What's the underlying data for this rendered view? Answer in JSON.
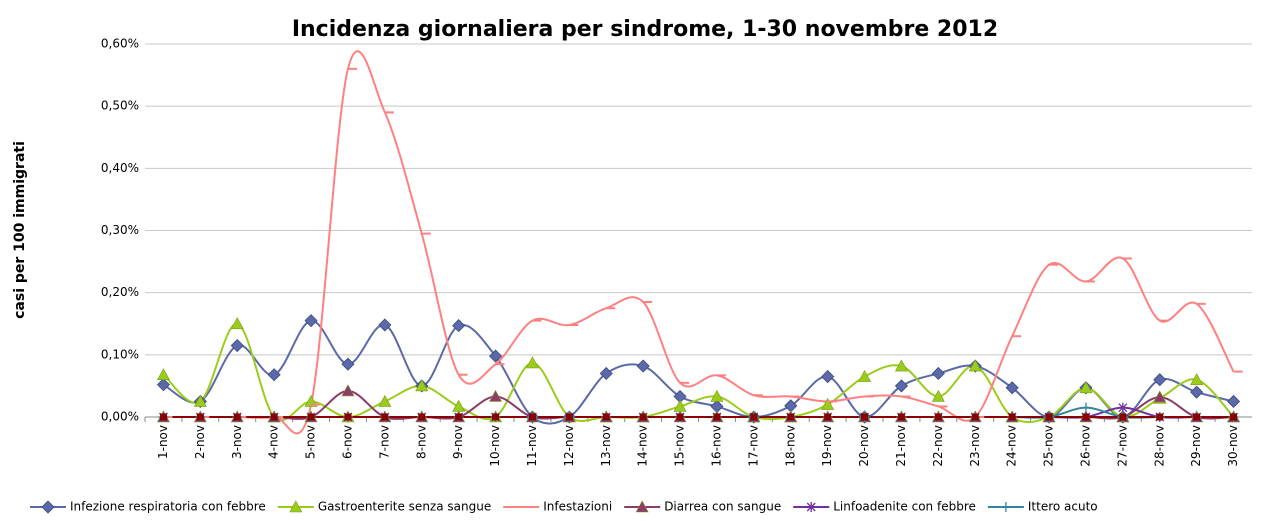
{
  "chart_data": {
    "type": "line",
    "title": "Incidenza giornaliera per sindrome, 1-30 novembre 2012",
    "y_label": "casi per 100 immigrati",
    "categories": [
      "1-nov",
      "2-nov",
      "3-nov",
      "4-nov",
      "5-nov",
      "6-nov",
      "7-nov",
      "8-nov",
      "9-nov",
      "10-nov",
      "11-nov",
      "12-nov",
      "13-nov",
      "14-nov",
      "15-nov",
      "16-nov",
      "17-nov",
      "18-nov",
      "19-nov",
      "20-nov",
      "21-nov",
      "22-nov",
      "23-nov",
      "24-nov",
      "25-nov",
      "26-nov",
      "27-nov",
      "28-nov",
      "29-nov",
      "30-nov"
    ],
    "ylim": [
      0,
      0.6
    ],
    "yticks": [
      {
        "value": 0,
        "label": "0,00%"
      },
      {
        "value": 0.1,
        "label": "0,10%"
      },
      {
        "value": 0.2,
        "label": "0,20%"
      },
      {
        "value": 0.3,
        "label": "0,30%"
      },
      {
        "value": 0.4,
        "label": "0,40%"
      },
      {
        "value": 0.5,
        "label": "0,50%"
      },
      {
        "value": 0.6,
        "label": "0,60%"
      }
    ],
    "grid": true,
    "smooth": true,
    "legend": "bottom",
    "series": [
      {
        "name": "Infezione respiratoria con febbre",
        "color": "#5a6aa8",
        "marker": "diamond",
        "values": [
          0.052,
          0.025,
          0.115,
          0.068,
          0.155,
          0.085,
          0.148,
          0.05,
          0.147,
          0.098,
          0,
          0,
          0.07,
          0.082,
          0.033,
          0.017,
          0,
          0.018,
          0.065,
          0,
          0.05,
          0.07,
          0.082,
          0.047,
          0,
          0.047,
          0,
          0.06,
          0.04,
          0.025
        ]
      },
      {
        "name": "Gastroenterite senza sangue",
        "color": "#9acd1a",
        "marker": "triangle",
        "values": [
          0.068,
          0.025,
          0.15,
          0,
          0.025,
          0,
          0.025,
          0.05,
          0.017,
          0,
          0.087,
          0,
          0,
          0,
          0.017,
          0.033,
          0,
          0,
          0.02,
          0.065,
          0.082,
          0.033,
          0.082,
          0,
          0,
          0.047,
          0,
          0.03,
          0.06,
          0
        ]
      },
      {
        "name": "Infestazioni",
        "color": "#ff8080",
        "marker": "dash",
        "values": [
          0,
          0,
          0,
          0,
          0.02,
          0.56,
          0.49,
          0.295,
          0.068,
          0.085,
          0.155,
          0.148,
          0.175,
          0.185,
          0.055,
          0.067,
          0.035,
          0.033,
          0.025,
          0.033,
          0.033,
          0.017,
          0,
          0.13,
          0.245,
          0.218,
          0.255,
          0.155,
          0.182,
          0.073
        ]
      },
      {
        "name": "Diarrea con sangue",
        "color": "#8e3a6a",
        "marker": "triangle",
        "values": [
          0,
          0,
          0,
          0,
          0,
          0.042,
          0,
          0,
          0,
          0.033,
          0,
          0,
          0,
          0,
          0,
          0,
          0,
          0,
          0,
          0,
          0,
          0,
          0,
          0,
          0,
          0,
          0,
          0.032,
          0,
          0
        ]
      },
      {
        "name": "Linfoadenite con febbre",
        "color": "#7030a0",
        "marker": "star",
        "values": [
          0,
          0,
          0,
          0,
          0,
          0,
          0,
          0,
          0,
          0,
          0,
          0,
          0,
          0,
          0,
          0,
          0,
          0,
          0,
          0,
          0,
          0,
          0,
          0,
          0,
          0,
          0.015,
          0,
          0,
          0
        ]
      },
      {
        "name": "Ittero acuto",
        "color": "#31859c",
        "marker": "plus",
        "values": [
          0,
          0,
          0,
          0,
          0,
          0,
          0,
          0,
          0,
          0,
          0,
          0,
          0,
          0,
          0,
          0,
          0,
          0,
          0,
          0,
          0,
          0,
          0,
          0,
          0,
          0.015,
          0,
          0,
          0,
          0
        ]
      },
      {
        "color": "#8b0000",
        "marker": "square",
        "values": [
          0,
          0,
          0,
          0,
          0,
          0,
          0,
          0,
          0,
          0,
          0,
          0,
          0,
          0,
          0,
          0,
          0,
          0,
          0,
          0,
          0,
          0,
          0,
          0,
          0,
          0,
          0,
          0,
          0,
          0
        ]
      }
    ]
  }
}
